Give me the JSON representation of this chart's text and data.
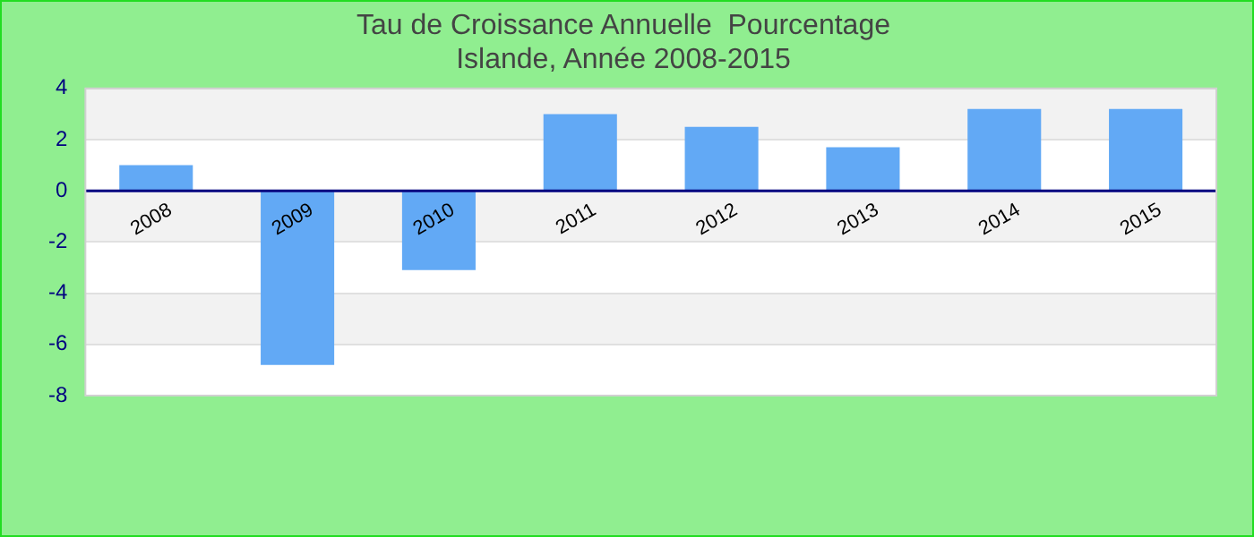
{
  "chart_data": {
    "type": "bar",
    "title": "Tau de Croissance Annuelle  Pourcentage",
    "subtitle": "Islande, Année 2008-2015",
    "categories": [
      "2008",
      "2009",
      "2010",
      "2011",
      "2012",
      "2013",
      "2014",
      "2015"
    ],
    "values": [
      1.0,
      -6.8,
      -3.1,
      3.0,
      2.5,
      1.7,
      3.2,
      3.2
    ],
    "color": "#62a9f5",
    "ylim": [
      -8,
      4
    ],
    "yticks": [
      -8,
      -6,
      -4,
      -2,
      0,
      2,
      4
    ],
    "grid": "y",
    "legend": false
  }
}
